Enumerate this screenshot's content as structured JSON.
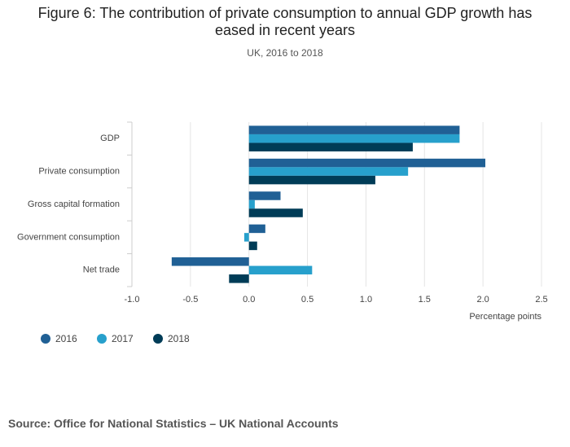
{
  "chart_data": {
    "type": "bar",
    "orientation": "horizontal",
    "title": "Figure 6: The contribution of private consumption to annual GDP growth has eased in recent years",
    "subtitle": "UK, 2016 to 2018",
    "x_label": "Percentage points",
    "source": "Source: Office for National Statistics – UK National Accounts",
    "categories": [
      "GDP",
      "Private consumption",
      "Gross capital formation",
      "Government consumption",
      "Net trade"
    ],
    "series": [
      {
        "name": "2016",
        "color": "#206095",
        "values": [
          1.8,
          2.02,
          0.27,
          0.14,
          -0.66
        ]
      },
      {
        "name": "2017",
        "color": "#27a0cc",
        "values": [
          1.8,
          1.36,
          0.05,
          -0.04,
          0.54
        ]
      },
      {
        "name": "2018",
        "color": "#003c57",
        "values": [
          1.4,
          1.08,
          0.46,
          0.07,
          -0.17
        ]
      }
    ],
    "xlim": [
      -1.0,
      2.5
    ],
    "xticks": [
      {
        "value": -1.0,
        "label": "-1.0"
      },
      {
        "value": -0.5,
        "label": "-0.5"
      },
      {
        "value": 0,
        "label": "0.0"
      },
      {
        "value": 0.5,
        "label": "0.5"
      },
      {
        "value": 1.0,
        "label": "1.0"
      },
      {
        "value": 1.5,
        "label": "1.5"
      },
      {
        "value": 2.0,
        "label": "2.0"
      },
      {
        "value": 2.5,
        "label": "2.5"
      }
    ],
    "grid": true
  }
}
